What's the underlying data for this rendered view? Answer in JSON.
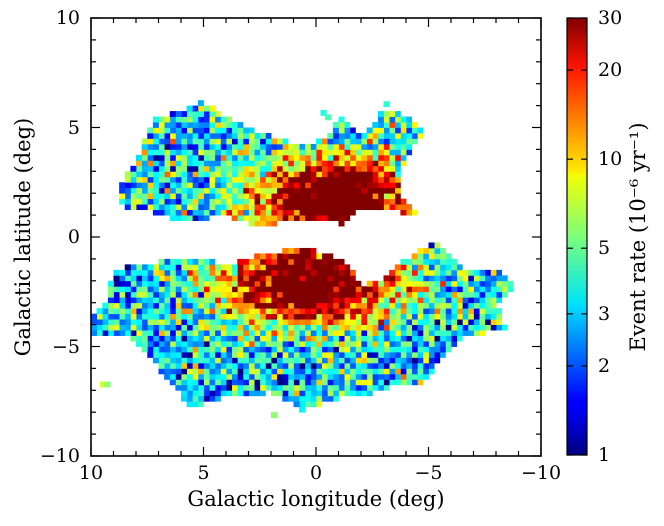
{
  "chart_data": {
    "type": "heatmap",
    "title": "",
    "xlabel": "Galactic longitude (deg)",
    "ylabel": "Galactic latitude (deg)",
    "xlim": [
      10,
      -10
    ],
    "ylim": [
      -10,
      10
    ],
    "x_direction": "reversed",
    "x_ticks": [
      10,
      5,
      0,
      -5,
      -10
    ],
    "x_tick_labels": [
      "10",
      "5",
      "0",
      "−5",
      "−10"
    ],
    "y_ticks": [
      10,
      5,
      0,
      -5,
      -10
    ],
    "y_tick_labels": [
      "10",
      "5",
      "0",
      "−5",
      "−10"
    ],
    "bin_size_deg": 0.25,
    "colorbar": {
      "label": "Event rate (10⁻⁶ yr⁻¹)",
      "scale": "log",
      "range": [
        1,
        30
      ],
      "colormap": "jet",
      "ticks": [
        1,
        2,
        3,
        5,
        10,
        20,
        30
      ],
      "tick_labels": [
        "1",
        "2",
        "3",
        "5",
        "10",
        "20",
        "30"
      ]
    },
    "regions": [
      {
        "name": "northern field",
        "b_range": [
          0.4,
          6.3
        ],
        "l_range": [
          -4.8,
          8.8
        ],
        "peak_event_rate": 30,
        "peak_location": {
          "l": -1.0,
          "b": 1.8
        }
      },
      {
        "name": "southern field",
        "b_range": [
          -8.2,
          -0.2
        ],
        "l_range": [
          -8.6,
          10
        ],
        "peak_event_rate": 30,
        "peak_location": {
          "l": 0.5,
          "b": -1.8
        }
      }
    ],
    "typical_event_rate_outer": [
      2,
      8
    ],
    "typical_event_rate_central": [
      15,
      30
    ]
  }
}
